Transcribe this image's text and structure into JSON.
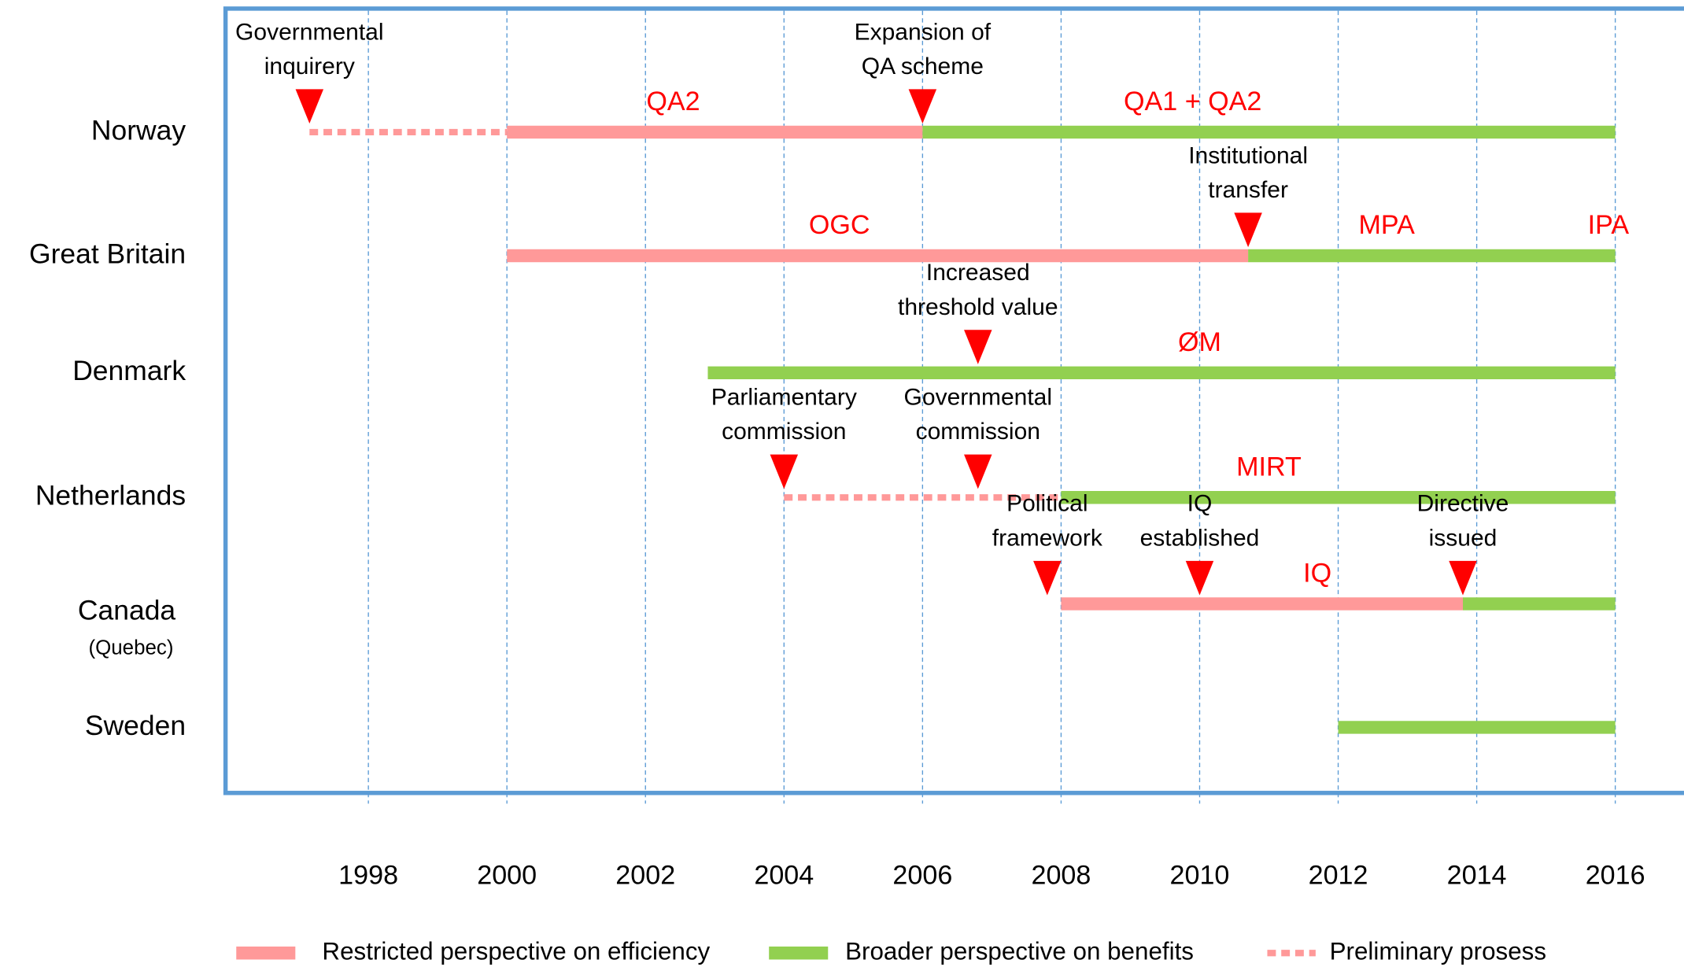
{
  "chart_data": {
    "type": "timeline",
    "xlim": [
      1996,
      2017
    ],
    "xticks": [
      1998,
      2000,
      2002,
      2004,
      2006,
      2008,
      2010,
      2012,
      2014,
      2016
    ],
    "grid": true,
    "series": [
      {
        "name": "Restricted perspective on efficiency",
        "color": "#ff9999",
        "style": "solid"
      },
      {
        "name": "Broader perspective on benefits",
        "color": "#92d050",
        "style": "solid"
      },
      {
        "name": "Preliminary prosess",
        "color": "#ff9999",
        "style": "dotted"
      }
    ],
    "rows": [
      {
        "name": "Norway",
        "segments": [
          {
            "start": 1997.15,
            "end": 2000,
            "series": 2
          },
          {
            "start": 2000,
            "end": 2006,
            "series": 0
          },
          {
            "start": 2006,
            "end": 2016,
            "series": 1
          }
        ],
        "events": [
          {
            "x": 1997.15,
            "label": [
              "Governmental",
              "inquirery"
            ]
          },
          {
            "x": 2006,
            "label": [
              "Expansion of",
              "QA scheme"
            ]
          }
        ],
        "phases": [
          {
            "x": 2002.4,
            "label": "QA2"
          },
          {
            "x": 2009.9,
            "label": "QA1 + QA2"
          }
        ]
      },
      {
        "name": "Great Britain",
        "segments": [
          {
            "start": 2000,
            "end": 2010.7,
            "series": 0
          },
          {
            "start": 2010.7,
            "end": 2016,
            "series": 1
          }
        ],
        "events": [
          {
            "x": 2010.7,
            "label": [
              "Institutional",
              "transfer"
            ]
          }
        ],
        "phases": [
          {
            "x": 2004.8,
            "label": "OGC"
          },
          {
            "x": 2012.7,
            "label": "MPA"
          },
          {
            "x": 2015.9,
            "label": "IPA"
          }
        ]
      },
      {
        "name": "Denmark",
        "segments": [
          {
            "start": 2002.9,
            "end": 2016,
            "series": 1
          }
        ],
        "events": [
          {
            "x": 2006.8,
            "label": [
              "Increased",
              "threshold value"
            ]
          }
        ],
        "phases": [
          {
            "x": 2010,
            "label": "ØM"
          }
        ]
      },
      {
        "name": "Netherlands",
        "segments": [
          {
            "start": 2004,
            "end": 2008,
            "series": 2
          },
          {
            "start": 2008,
            "end": 2016,
            "series": 1
          }
        ],
        "events": [
          {
            "x": 2004,
            "label": [
              "Parliamentary",
              "commission"
            ]
          },
          {
            "x": 2006.8,
            "label": [
              "Governmental",
              "commission"
            ]
          }
        ],
        "phases": [
          {
            "x": 2011,
            "label": "MIRT"
          }
        ]
      },
      {
        "name": "Canada",
        "sublabel": "(Quebec)",
        "segments": [
          {
            "start": 2008,
            "end": 2013.8,
            "series": 0
          },
          {
            "start": 2013.8,
            "end": 2016,
            "series": 1
          }
        ],
        "events": [
          {
            "x": 2007.8,
            "label": [
              "Political",
              "framework"
            ]
          },
          {
            "x": 2010,
            "label": [
              "IQ",
              "established"
            ]
          },
          {
            "x": 2013.8,
            "label": [
              "Directive",
              "issued"
            ]
          }
        ],
        "phases": [
          {
            "x": 2011.7,
            "label": "IQ"
          }
        ]
      },
      {
        "name": "Sweden",
        "segments": [
          {
            "start": 2012,
            "end": 2016,
            "series": 1
          }
        ],
        "events": [],
        "phases": []
      }
    ]
  }
}
